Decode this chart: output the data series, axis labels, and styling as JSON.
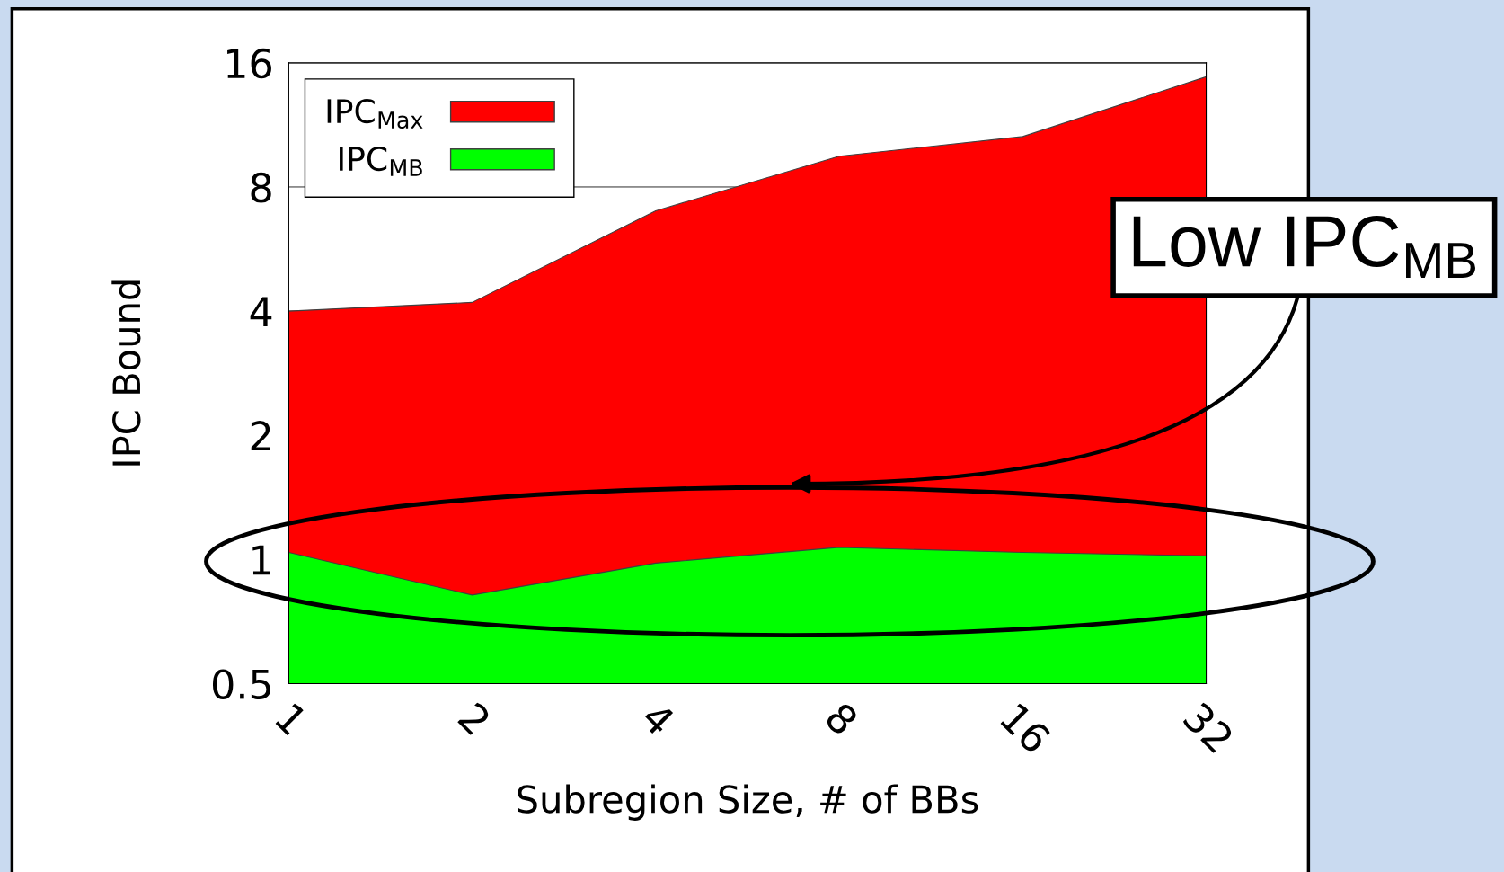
{
  "chart_data": {
    "type": "area",
    "xlabel": "Subregion Size, # of BBs",
    "ylabel": "IPC Bound",
    "categories": [
      "1",
      "2",
      "4",
      "8",
      "16",
      "32"
    ],
    "series": [
      {
        "name": "IPC$_{Max}$",
        "color": "#ff0000",
        "values": [
          4.0,
          4.2,
          7.0,
          9.5,
          10.6,
          14.8
        ]
      },
      {
        "name": "IPC$_{MB}$",
        "color": "#00ff00",
        "values": [
          1.04,
          0.82,
          0.98,
          1.07,
          1.04,
          1.02
        ]
      }
    ],
    "log": "y",
    "ylim": [
      0.5,
      16
    ],
    "yticks": [
      0.5,
      1,
      2,
      4,
      8,
      16
    ],
    "grid": "y",
    "legend": "top left",
    "annotations": [
      "Low IPC$_{MB}$"
    ]
  }
}
